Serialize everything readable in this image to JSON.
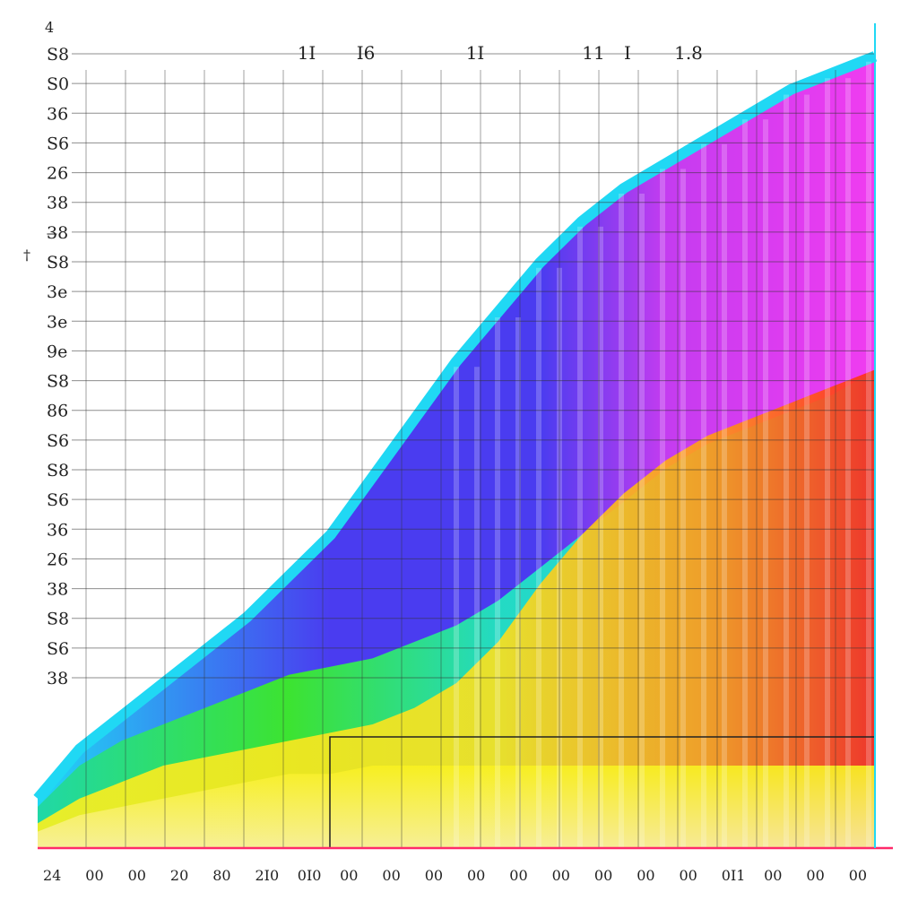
{
  "chart_data": {
    "type": "area",
    "corner_label": "4",
    "side_mark": "†",
    "top_labels": [
      "1I",
      "I6",
      "1I",
      "11",
      "I",
      "1.8"
    ],
    "y_tick_labels": [
      "S8",
      "S0",
      "36",
      "S6",
      "26",
      "38",
      "3̶8",
      "S8",
      "3e",
      "3e",
      "9e",
      "S8",
      "86",
      "S6",
      "S8",
      "S6",
      "36",
      "26",
      "38",
      "S8",
      "S6",
      "38"
    ],
    "x_tick_labels": [
      "24",
      "00",
      "00",
      "20",
      "80",
      "2I0",
      "0I0",
      "00",
      "00",
      "00",
      "00",
      "00",
      "00",
      "00",
      "00",
      "00",
      "0I1",
      "00",
      "00",
      "00"
    ],
    "series": [
      {
        "values": [
          0.06,
          0.12,
          0.16,
          0.2,
          0.24,
          0.28,
          0.33,
          0.38,
          0.45,
          0.52,
          0.59,
          0.65,
          0.71,
          0.76,
          0.8,
          0.83,
          0.86,
          0.89,
          0.92,
          0.94,
          0.96
        ]
      },
      {
        "values": [
          0.05,
          0.1,
          0.13,
          0.15,
          0.17,
          0.19,
          0.21,
          0.22,
          0.23,
          0.25,
          0.27,
          0.3,
          0.34,
          0.38,
          0.42,
          0.46,
          0.49,
          0.51,
          0.53,
          0.55,
          0.58
        ]
      },
      {
        "values": [
          0.03,
          0.06,
          0.08,
          0.1,
          0.11,
          0.12,
          0.13,
          0.14,
          0.15,
          0.17,
          0.2,
          0.25,
          0.32,
          0.38,
          0.43,
          0.47,
          0.5,
          0.52,
          0.54,
          0.56,
          0.58
        ]
      },
      {
        "values": [
          0.02,
          0.04,
          0.05,
          0.06,
          0.07,
          0.08,
          0.09,
          0.09,
          0.1,
          0.1,
          0.1,
          0.1,
          0.1,
          0.1,
          0.1,
          0.1,
          0.1,
          0.1,
          0.1,
          0.1,
          0.1
        ]
      }
    ],
    "colors": {
      "cyan": "#20d8f4",
      "blue": "#4a3cf0",
      "magenta": "#f03cf0",
      "green": "#3cf020",
      "yellow": "#f8f020",
      "orange": "#ff6a1a",
      "red": "#ff2a1a",
      "axis_pink": "#ff2a6a",
      "grid": "#333333"
    },
    "grid": true,
    "ylim": [
      0,
      1
    ],
    "xlim": [
      0,
      20
    ]
  }
}
